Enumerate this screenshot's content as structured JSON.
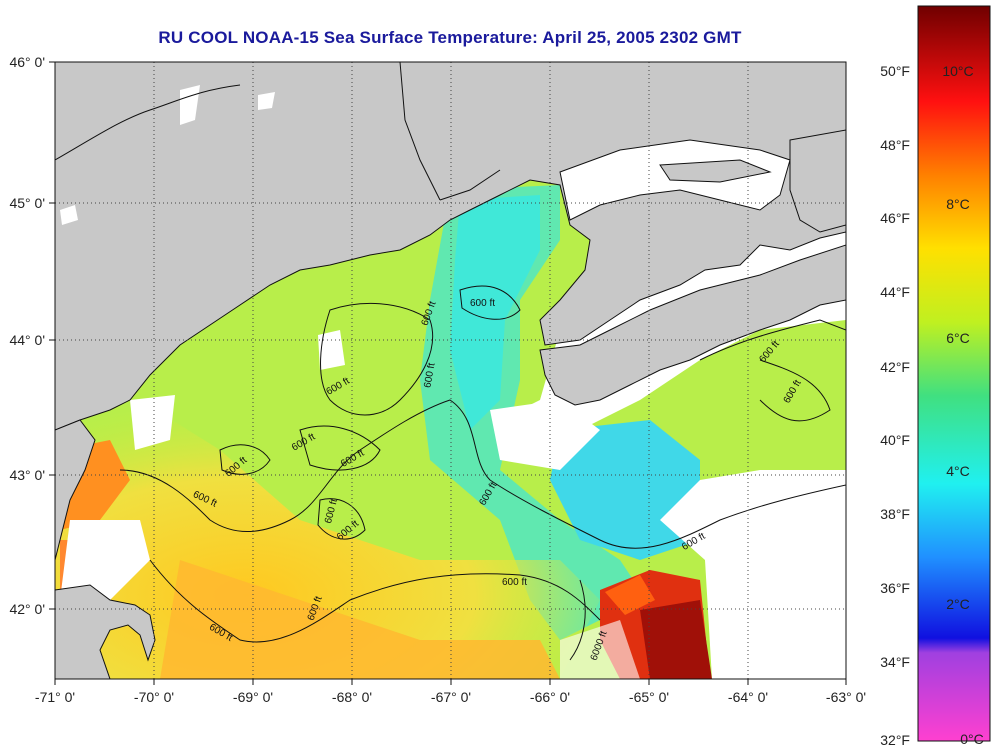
{
  "title": "RU COOL  NOAA-15  Sea Surface Temperature:  April 25, 2005 2302 GMT",
  "map": {
    "lon_labels": [
      "-71° 0'",
      "-70° 0'",
      "-69° 0'",
      "-68° 0'",
      "-67° 0'",
      "-66° 0'",
      "-65° 0'",
      "-64° 0'",
      "-63° 0'"
    ],
    "lat_labels": [
      "46° 0'",
      "45° 0'",
      "44° 0'",
      "43° 0'",
      "42° 0'"
    ],
    "contour_label": "600 ft",
    "contour_label_deep": "6000 ft",
    "colors": {
      "land": "#c8c8c8",
      "cloud": "#ffffff",
      "grid": "#444444"
    }
  },
  "colorbar": {
    "fahrenheit_labels": [
      "50°F",
      "48°F",
      "46°F",
      "44°F",
      "42°F",
      "40°F",
      "38°F",
      "36°F",
      "34°F",
      "32°F"
    ],
    "celsius_labels": [
      "10°C",
      "8°C",
      "6°C",
      "4°C",
      "2°C",
      "0°C"
    ]
  }
}
